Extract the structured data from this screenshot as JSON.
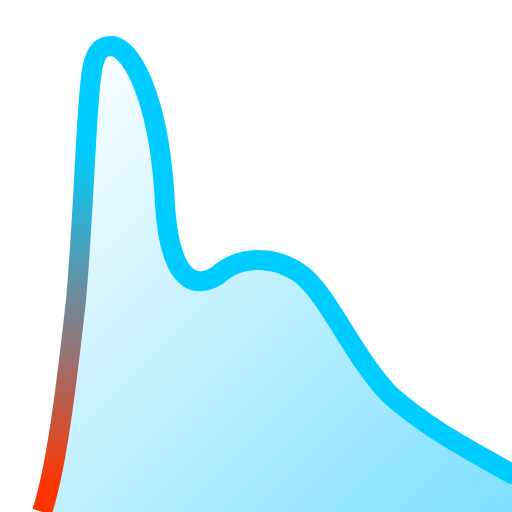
{
  "icon": {
    "semantic": "distribution-curve-icon",
    "colors": {
      "background": "#ffffff",
      "curve": "#00CCFF",
      "fill_top": "#ffffff",
      "fill_bottom": "#7FE0FF",
      "tail_warm": "#FF3300",
      "tail_mid": "#8A7A80"
    }
  }
}
